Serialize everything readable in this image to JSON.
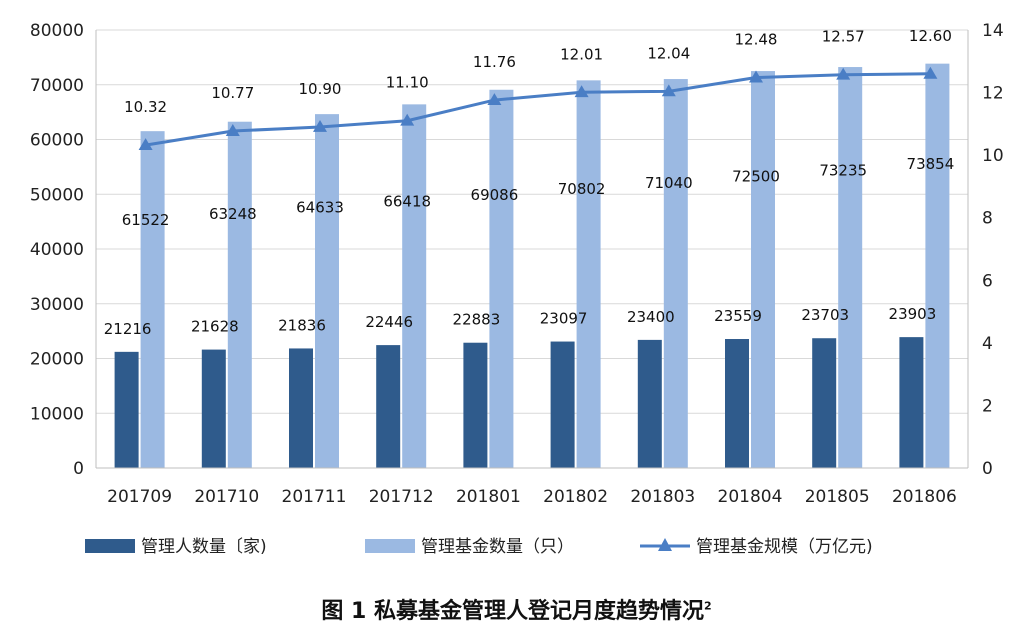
{
  "chart_data": {
    "type": "bar",
    "title": "图 1  私募基金管理人登记月度趋势情况",
    "title_footnote": "2",
    "categories": [
      "201709",
      "201710",
      "201711",
      "201712",
      "201801",
      "201802",
      "201803",
      "201804",
      "201805",
      "201806"
    ],
    "series": [
      {
        "name": "管理人数量〔家)",
        "type": "bar",
        "axis": "left",
        "color": "#2f5b8c",
        "values": [
          21216,
          21628,
          21836,
          22446,
          22883,
          23097,
          23400,
          23559,
          23703,
          23903
        ]
      },
      {
        "name": "管理基金数量（只）",
        "type": "bar",
        "axis": "left",
        "color": "#9bb9e2",
        "values": [
          61522,
          63248,
          64633,
          66418,
          69086,
          70802,
          71040,
          72500,
          73235,
          73854
        ]
      },
      {
        "name": "管理基金规模（万亿元)",
        "type": "line",
        "axis": "right",
        "color": "#4a7ec5",
        "values": [
          10.32,
          10.77,
          10.9,
          11.1,
          11.76,
          12.01,
          12.04,
          12.48,
          12.57,
          12.6
        ]
      }
    ],
    "y_left": {
      "ylim": [
        0,
        80000
      ],
      "ticks": [
        0,
        10000,
        20000,
        30000,
        40000,
        50000,
        60000,
        70000,
        80000
      ]
    },
    "y_right": {
      "ylim": [
        0,
        14
      ],
      "ticks": [
        0,
        2,
        4,
        6,
        8,
        10,
        12,
        14
      ]
    },
    "grid": true,
    "legend_position": "bottom"
  }
}
